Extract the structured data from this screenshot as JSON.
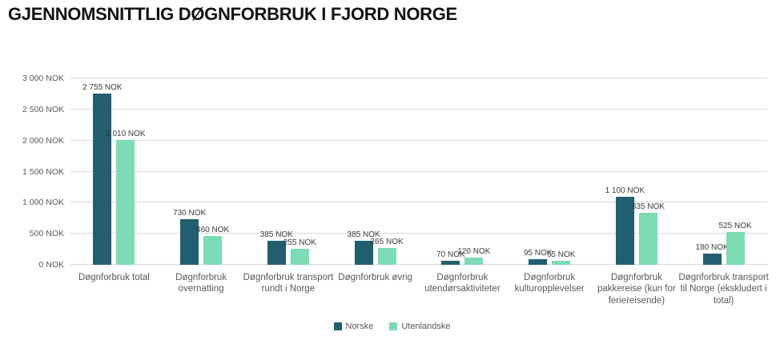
{
  "chart_data": {
    "type": "bar",
    "title": "GJENNOMSNITTLIG DØGNFORBRUK I FJORD NORGE",
    "categories": [
      "Døgnforbruk total",
      "Døgnforbruk overnatting",
      "Døgnforbruk transport rundt i Norge",
      "Døgnforbruk øvrig",
      "Døgnforbruk utendørsaktiviteter",
      "Døgnforbruk kulturopplevelser",
      "Døgnforbruk pakkereise (kun for feriereisende)",
      "Døgnforbruk transport til Norge (ekskludert i total)"
    ],
    "series": [
      {
        "name": "Norske",
        "color": "#215e70",
        "values": [
          2755,
          730,
          385,
          385,
          70,
          95,
          1100,
          180
        ],
        "labels": [
          "2 755 NOK",
          "730 NOK",
          "385 NOK",
          "385 NOK",
          "70 NOK",
          "95 NOK",
          "1 100 NOK",
          "180 NOK"
        ]
      },
      {
        "name": "Utenlandske",
        "color": "#7cdcb4",
        "values": [
          2010,
          460,
          255,
          265,
          120,
          65,
          835,
          525
        ],
        "labels": [
          "2 010 NOK",
          "460 NOK",
          "255 NOK",
          "265 NOK",
          "120 NOK",
          "65 NOK",
          "835 NOK",
          "525 NOK"
        ]
      }
    ],
    "xlabel": "",
    "ylabel": "",
    "ylim": [
      0,
      3000
    ],
    "yticks": [
      0,
      500,
      1000,
      1500,
      2000,
      2500,
      3000
    ],
    "ytick_labels": [
      "0 NOK",
      "500 NOK",
      "1 000 NOK",
      "1 500 NOK",
      "2 000 NOK",
      "2 500 NOK",
      "3 000 NOK"
    ],
    "grid": true,
    "legend_position": "bottom-center",
    "colors": {
      "gridline": "#d9d9d9",
      "axis_text": "#595959",
      "value_text": "#3d3d3d",
      "title_text": "#121212"
    }
  }
}
